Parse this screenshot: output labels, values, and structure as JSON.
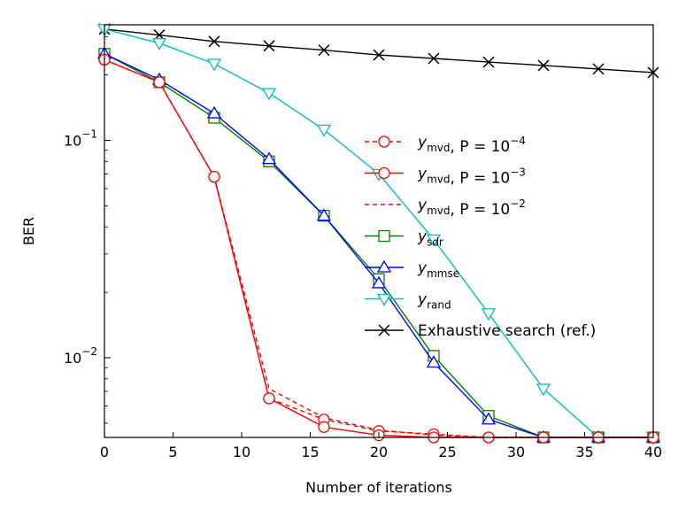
{
  "chart_data": {
    "type": "line",
    "xlabel": "Number of iterations",
    "ylabel": "BER",
    "xlim": [
      0,
      40
    ],
    "ylim": [
      0.0043,
      0.34
    ],
    "yscale": "log",
    "x_ticks": [
      0,
      5,
      10,
      15,
      20,
      25,
      30,
      35,
      40
    ],
    "y_ticks": [
      {
        "value": 0.1,
        "base": "10",
        "exp": "−1"
      },
      {
        "value": 0.01,
        "base": "10",
        "exp": "−2"
      }
    ],
    "grid": false,
    "legend_position": "center-right",
    "x": [
      0,
      4,
      8,
      12,
      16,
      20,
      24,
      28,
      32,
      36,
      40
    ],
    "series": [
      {
        "name": "y",
        "sub": "mvd",
        "param": ", P = 10",
        "param_exp": "−4",
        "color": "#ff0000",
        "dash": "5,4",
        "marker": "circle",
        "marker_idx": [
          0,
          4,
          8,
          12,
          16,
          20,
          24,
          28,
          32,
          36,
          40
        ],
        "x": [
          0,
          4,
          8,
          12,
          16,
          20,
          24,
          28,
          32,
          36,
          40
        ],
        "values": [
          0.235,
          0.185,
          0.068,
          0.0065,
          0.0052,
          0.0046,
          0.00445,
          0.0043,
          0.0043,
          0.0043,
          0.0043
        ]
      },
      {
        "name": "y",
        "sub": "mvd",
        "param": ", P = 10",
        "param_exp": "−3",
        "color": "#ff0000",
        "dash": "",
        "marker": "circle",
        "x": [
          0,
          4,
          8,
          12,
          16,
          20,
          24,
          28,
          32,
          36,
          40
        ],
        "values": [
          0.235,
          0.185,
          0.068,
          0.0065,
          0.0048,
          0.0044,
          0.0043,
          0.0043,
          0.0043,
          0.0043,
          0.0043
        ]
      },
      {
        "name": "y",
        "sub": "mvd",
        "param": ", P = 10",
        "param_exp": "−2",
        "color": "#ff0000",
        "dash": "5,4",
        "marker": "none",
        "x": [
          0,
          4,
          8,
          12,
          16,
          20,
          24,
          28,
          32,
          36,
          40
        ],
        "values": [
          0.235,
          0.185,
          0.068,
          0.0072,
          0.0053,
          0.00465,
          0.0044,
          0.0043,
          0.0043,
          0.0043,
          0.0043
        ]
      },
      {
        "name": "y",
        "sub": "sdr",
        "param": "",
        "param_exp": "",
        "color": "#008000",
        "dash": "",
        "marker": "square",
        "x": [
          0,
          4,
          8,
          12,
          16,
          20,
          24,
          28,
          32,
          36,
          40
        ],
        "values": [
          0.25,
          0.185,
          0.127,
          0.08,
          0.045,
          0.023,
          0.0102,
          0.0054,
          0.0043,
          0.0043,
          0.0043
        ]
      },
      {
        "name": "y",
        "sub": "mmse",
        "param": "",
        "param_exp": "",
        "color": "#0000ff",
        "dash": "",
        "marker": "triangle-up",
        "x": [
          0,
          4,
          8,
          12,
          16,
          20,
          24,
          28,
          32,
          36,
          40
        ],
        "values": [
          0.25,
          0.19,
          0.133,
          0.082,
          0.045,
          0.022,
          0.0095,
          0.0052,
          0.0043,
          0.0043,
          0.0043
        ]
      },
      {
        "name": "y",
        "sub": "rand",
        "param": "",
        "param_exp": "",
        "color": "#00bfbf",
        "dash": "",
        "marker": "triangle-down",
        "x": [
          0,
          4,
          8,
          12,
          16,
          20,
          24,
          28,
          32,
          36,
          40
        ],
        "values": [
          0.325,
          0.28,
          0.225,
          0.165,
          0.112,
          0.07,
          0.035,
          0.016,
          0.0072,
          0.0043,
          0.0043
        ]
      },
      {
        "name": "Exhaustive search (ref.)",
        "sub": "",
        "param": "",
        "param_exp": "",
        "color": "#000000",
        "dash": "",
        "marker": "x",
        "x": [
          0,
          4,
          8,
          12,
          16,
          20,
          24,
          28,
          32,
          36,
          40
        ],
        "values": [
          0.325,
          0.305,
          0.285,
          0.272,
          0.26,
          0.247,
          0.238,
          0.229,
          0.221,
          0.213,
          0.205
        ]
      }
    ]
  }
}
